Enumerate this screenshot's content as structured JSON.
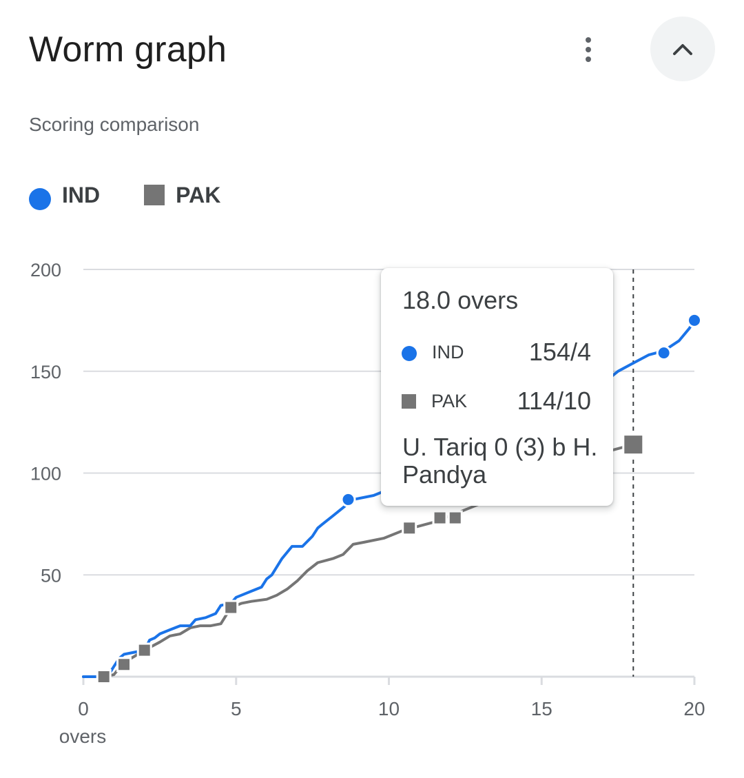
{
  "header": {
    "title": "Worm graph",
    "more_icon": "more-vert-icon",
    "collapse_icon": "chevron-up-icon"
  },
  "subtitle": "Scoring comparison",
  "legend": [
    {
      "name": "IND",
      "color": "#1a73e8",
      "marker": "circle"
    },
    {
      "name": "PAK",
      "color": "#757575",
      "marker": "square"
    }
  ],
  "tooltip": {
    "title": "18.0 overs",
    "rows": [
      {
        "team": "IND",
        "score": "154/4"
      },
      {
        "team": "PAK",
        "score": "114/10"
      }
    ],
    "event": "U. Tariq 0 (3) b H. Pandya"
  },
  "chart_data": {
    "type": "line",
    "title": "",
    "xlabel": "overs",
    "ylabel": "",
    "xlim": [
      0,
      20
    ],
    "ylim": [
      0,
      200
    ],
    "x_ticks": [
      0,
      5,
      10,
      15,
      20
    ],
    "y_ticks": [
      50,
      100,
      150,
      200
    ],
    "grid": "horizontal",
    "highlight_x": 18.0,
    "series": [
      {
        "name": "IND",
        "color": "#1a73e8",
        "marker": "circle",
        "points": [
          [
            0,
            0
          ],
          [
            0.5,
            0
          ],
          [
            0.67,
            0
          ],
          [
            0.83,
            1
          ],
          [
            1.0,
            5
          ],
          [
            1.17,
            9
          ],
          [
            1.33,
            11
          ],
          [
            1.67,
            12
          ],
          [
            2.0,
            13
          ],
          [
            2.17,
            18
          ],
          [
            2.33,
            19
          ],
          [
            2.5,
            21
          ],
          [
            2.83,
            23
          ],
          [
            3.17,
            25
          ],
          [
            3.5,
            25
          ],
          [
            3.67,
            28
          ],
          [
            4.0,
            29
          ],
          [
            4.33,
            31
          ],
          [
            4.5,
            35
          ],
          [
            4.83,
            36
          ],
          [
            5.0,
            39
          ],
          [
            5.17,
            40
          ],
          [
            5.5,
            42
          ],
          [
            5.83,
            44
          ],
          [
            6.0,
            48
          ],
          [
            6.17,
            50
          ],
          [
            6.5,
            58
          ],
          [
            6.83,
            64
          ],
          [
            7.17,
            64
          ],
          [
            7.5,
            69
          ],
          [
            7.67,
            73
          ],
          [
            7.83,
            75
          ],
          [
            8.17,
            79
          ],
          [
            8.5,
            83
          ],
          [
            8.83,
            87
          ],
          [
            9.5,
            89
          ],
          [
            10.0,
            92
          ],
          [
            10.5,
            93
          ],
          [
            11.0,
            94
          ],
          [
            11.5,
            95
          ],
          [
            12.0,
            97
          ],
          [
            13.0,
            102
          ],
          [
            14.0,
            110
          ],
          [
            15.0,
            120
          ],
          [
            16.0,
            132
          ],
          [
            17.0,
            144
          ],
          [
            17.5,
            150
          ],
          [
            18.0,
            154
          ],
          [
            18.5,
            158
          ],
          [
            19.0,
            160
          ],
          [
            19.5,
            165
          ],
          [
            19.83,
            171
          ],
          [
            20.0,
            175
          ]
        ],
        "markers": [
          [
            8.67,
            87
          ],
          [
            19.0,
            159
          ],
          [
            20.0,
            175
          ]
        ]
      },
      {
        "name": "PAK",
        "color": "#757575",
        "marker": "square",
        "points": [
          [
            0,
            0
          ],
          [
            0.67,
            0
          ],
          [
            1.0,
            1
          ],
          [
            1.33,
            7
          ],
          [
            1.67,
            10
          ],
          [
            2.0,
            13
          ],
          [
            2.5,
            17
          ],
          [
            2.83,
            20
          ],
          [
            3.17,
            21
          ],
          [
            3.5,
            24
          ],
          [
            3.83,
            25
          ],
          [
            4.17,
            25
          ],
          [
            4.5,
            26
          ],
          [
            4.83,
            34
          ],
          [
            5.17,
            36
          ],
          [
            5.5,
            37
          ],
          [
            6.0,
            38
          ],
          [
            6.33,
            40
          ],
          [
            6.67,
            43
          ],
          [
            7.0,
            47
          ],
          [
            7.33,
            52
          ],
          [
            7.67,
            56
          ],
          [
            8.17,
            58
          ],
          [
            8.5,
            60
          ],
          [
            8.83,
            65
          ],
          [
            9.17,
            66
          ],
          [
            9.83,
            68
          ],
          [
            10.5,
            72
          ],
          [
            11.0,
            74
          ],
          [
            11.5,
            76
          ],
          [
            12.0,
            79
          ],
          [
            12.5,
            82
          ],
          [
            13.0,
            85
          ],
          [
            14.0,
            92
          ],
          [
            15.0,
            98
          ],
          [
            16.0,
            104
          ],
          [
            17.0,
            110
          ],
          [
            18.0,
            114
          ]
        ],
        "markers": [
          [
            0.67,
            0
          ],
          [
            1.33,
            6
          ],
          [
            2.0,
            13
          ],
          [
            4.83,
            34
          ],
          [
            10.67,
            73
          ],
          [
            11.67,
            78
          ],
          [
            12.17,
            78
          ],
          [
            18.0,
            114
          ]
        ]
      }
    ]
  }
}
